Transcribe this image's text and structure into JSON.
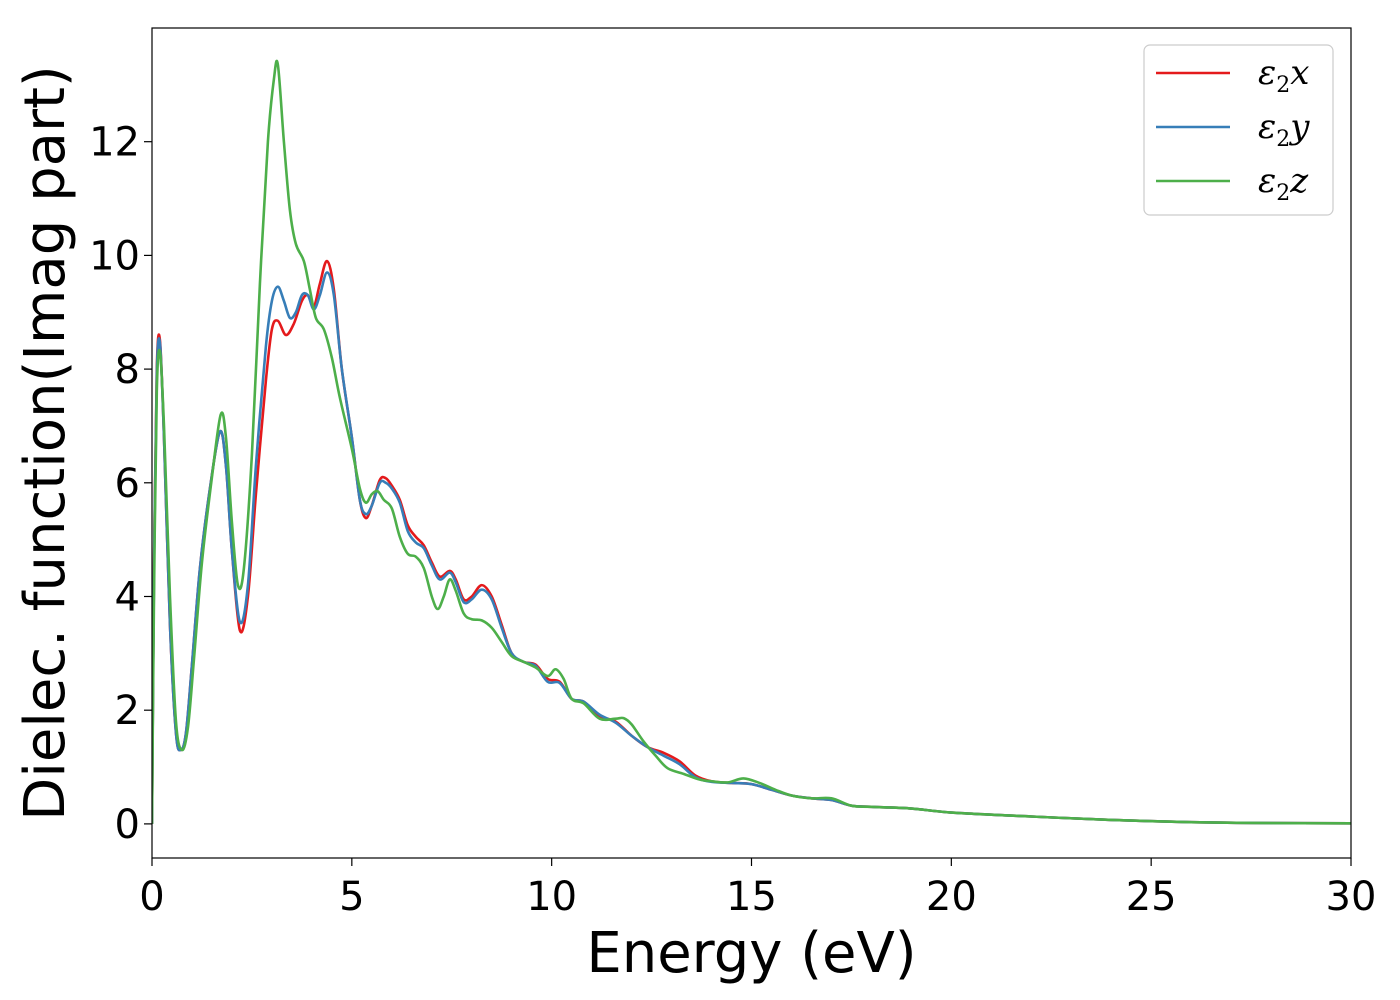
{
  "chart_data": {
    "type": "line",
    "xlabel": "Energy (eV)",
    "ylabel": "Dielec. function(Imag part)",
    "xlim": [
      0,
      30
    ],
    "ylim": [
      -0.6,
      14
    ],
    "xticks": [
      0,
      5,
      10,
      15,
      20,
      25,
      30
    ],
    "yticks": [
      0,
      2,
      4,
      6,
      8,
      10,
      12
    ],
    "grid": false,
    "legend_position": "top-right",
    "series": [
      {
        "name": "ε2x",
        "legend": {
          "base": "ε",
          "sub": "2",
          "suffix": "x"
        },
        "color": "#e41a1c",
        "points": [
          [
            0,
            0
          ],
          [
            0.05,
            4.5
          ],
          [
            0.12,
            8.0
          ],
          [
            0.2,
            8.5
          ],
          [
            0.3,
            6.8
          ],
          [
            0.45,
            3.5
          ],
          [
            0.6,
            1.6
          ],
          [
            0.72,
            1.3
          ],
          [
            0.85,
            1.6
          ],
          [
            1.0,
            2.8
          ],
          [
            1.2,
            4.5
          ],
          [
            1.45,
            5.9
          ],
          [
            1.7,
            6.9
          ],
          [
            1.85,
            6.3
          ],
          [
            2.0,
            4.8
          ],
          [
            2.2,
            3.4
          ],
          [
            2.4,
            4.0
          ],
          [
            2.6,
            5.8
          ],
          [
            2.85,
            7.8
          ],
          [
            3.0,
            8.7
          ],
          [
            3.15,
            8.85
          ],
          [
            3.35,
            8.6
          ],
          [
            3.55,
            8.8
          ],
          [
            3.75,
            9.2
          ],
          [
            3.9,
            9.3
          ],
          [
            4.05,
            9.1
          ],
          [
            4.2,
            9.5
          ],
          [
            4.38,
            9.9
          ],
          [
            4.55,
            9.4
          ],
          [
            4.75,
            8.0
          ],
          [
            5.0,
            6.8
          ],
          [
            5.2,
            5.7
          ],
          [
            5.35,
            5.38
          ],
          [
            5.5,
            5.6
          ],
          [
            5.7,
            6.05
          ],
          [
            5.85,
            6.08
          ],
          [
            6.0,
            5.95
          ],
          [
            6.2,
            5.7
          ],
          [
            6.4,
            5.25
          ],
          [
            6.6,
            5.05
          ],
          [
            6.8,
            4.9
          ],
          [
            7.0,
            4.6
          ],
          [
            7.2,
            4.35
          ],
          [
            7.45,
            4.45
          ],
          [
            7.6,
            4.3
          ],
          [
            7.8,
            3.95
          ],
          [
            8.0,
            4.0
          ],
          [
            8.25,
            4.2
          ],
          [
            8.5,
            4.0
          ],
          [
            8.75,
            3.5
          ],
          [
            9.0,
            3.0
          ],
          [
            9.3,
            2.85
          ],
          [
            9.6,
            2.8
          ],
          [
            9.9,
            2.55
          ],
          [
            10.2,
            2.5
          ],
          [
            10.5,
            2.2
          ],
          [
            10.8,
            2.15
          ],
          [
            11.2,
            1.9
          ],
          [
            11.6,
            1.8
          ],
          [
            12.0,
            1.55
          ],
          [
            12.4,
            1.35
          ],
          [
            12.8,
            1.25
          ],
          [
            13.2,
            1.1
          ],
          [
            13.6,
            0.85
          ],
          [
            14.0,
            0.75
          ],
          [
            14.5,
            0.72
          ],
          [
            15.0,
            0.7
          ],
          [
            15.5,
            0.6
          ],
          [
            16.0,
            0.5
          ],
          [
            16.5,
            0.45
          ],
          [
            17.0,
            0.42
          ],
          [
            17.5,
            0.32
          ],
          [
            18.0,
            0.3
          ],
          [
            19.0,
            0.27
          ],
          [
            20.0,
            0.2
          ],
          [
            22.0,
            0.13
          ],
          [
            24.0,
            0.07
          ],
          [
            26.0,
            0.03
          ],
          [
            28.0,
            0.015
          ],
          [
            30.0,
            0.01
          ]
        ]
      },
      {
        "name": "ε2y",
        "legend": {
          "base": "ε",
          "sub": "2",
          "suffix": "y"
        },
        "color": "#377eb8",
        "points": [
          [
            0,
            0
          ],
          [
            0.05,
            4.4
          ],
          [
            0.12,
            7.9
          ],
          [
            0.2,
            8.45
          ],
          [
            0.3,
            6.8
          ],
          [
            0.45,
            3.5
          ],
          [
            0.6,
            1.6
          ],
          [
            0.72,
            1.3
          ],
          [
            0.85,
            1.6
          ],
          [
            1.0,
            2.8
          ],
          [
            1.2,
            4.5
          ],
          [
            1.45,
            5.9
          ],
          [
            1.7,
            6.9
          ],
          [
            1.85,
            6.3
          ],
          [
            2.0,
            4.8
          ],
          [
            2.2,
            3.55
          ],
          [
            2.4,
            4.2
          ],
          [
            2.6,
            6.3
          ],
          [
            2.85,
            8.4
          ],
          [
            3.0,
            9.2
          ],
          [
            3.15,
            9.45
          ],
          [
            3.3,
            9.2
          ],
          [
            3.45,
            8.9
          ],
          [
            3.6,
            9.0
          ],
          [
            3.75,
            9.3
          ],
          [
            3.9,
            9.3
          ],
          [
            4.05,
            9.05
          ],
          [
            4.2,
            9.3
          ],
          [
            4.38,
            9.7
          ],
          [
            4.55,
            9.3
          ],
          [
            4.75,
            8.0
          ],
          [
            5.0,
            6.8
          ],
          [
            5.2,
            5.7
          ],
          [
            5.35,
            5.45
          ],
          [
            5.5,
            5.6
          ],
          [
            5.7,
            6.0
          ],
          [
            5.85,
            6.0
          ],
          [
            6.0,
            5.9
          ],
          [
            6.2,
            5.65
          ],
          [
            6.4,
            5.15
          ],
          [
            6.6,
            4.95
          ],
          [
            6.8,
            4.85
          ],
          [
            7.0,
            4.55
          ],
          [
            7.2,
            4.3
          ],
          [
            7.45,
            4.42
          ],
          [
            7.6,
            4.25
          ],
          [
            7.8,
            3.9
          ],
          [
            8.0,
            3.95
          ],
          [
            8.25,
            4.12
          ],
          [
            8.5,
            3.95
          ],
          [
            8.75,
            3.45
          ],
          [
            9.0,
            3.0
          ],
          [
            9.3,
            2.85
          ],
          [
            9.6,
            2.78
          ],
          [
            9.9,
            2.5
          ],
          [
            10.2,
            2.48
          ],
          [
            10.5,
            2.2
          ],
          [
            10.8,
            2.15
          ],
          [
            11.2,
            1.92
          ],
          [
            11.6,
            1.78
          ],
          [
            12.0,
            1.55
          ],
          [
            12.4,
            1.35
          ],
          [
            12.8,
            1.2
          ],
          [
            13.2,
            1.05
          ],
          [
            13.6,
            0.82
          ],
          [
            14.0,
            0.74
          ],
          [
            14.5,
            0.72
          ],
          [
            15.0,
            0.7
          ],
          [
            15.5,
            0.6
          ],
          [
            16.0,
            0.5
          ],
          [
            16.5,
            0.45
          ],
          [
            17.0,
            0.42
          ],
          [
            17.5,
            0.32
          ],
          [
            18.0,
            0.3
          ],
          [
            19.0,
            0.27
          ],
          [
            20.0,
            0.2
          ],
          [
            22.0,
            0.13
          ],
          [
            24.0,
            0.07
          ],
          [
            26.0,
            0.03
          ],
          [
            28.0,
            0.015
          ],
          [
            30.0,
            0.01
          ]
        ]
      },
      {
        "name": "ε2z",
        "legend": {
          "base": "ε",
          "sub": "2",
          "suffix": "z"
        },
        "color": "#4daf4a",
        "points": [
          [
            0,
            0
          ],
          [
            0.05,
            4.0
          ],
          [
            0.12,
            7.6
          ],
          [
            0.2,
            8.3
          ],
          [
            0.3,
            7.0
          ],
          [
            0.45,
            4.0
          ],
          [
            0.6,
            1.8
          ],
          [
            0.75,
            1.3
          ],
          [
            0.9,
            1.7
          ],
          [
            1.05,
            2.9
          ],
          [
            1.25,
            4.6
          ],
          [
            1.5,
            6.1
          ],
          [
            1.72,
            7.2
          ],
          [
            1.85,
            6.8
          ],
          [
            2.0,
            5.3
          ],
          [
            2.15,
            4.2
          ],
          [
            2.3,
            4.5
          ],
          [
            2.5,
            6.5
          ],
          [
            2.7,
            9.5
          ],
          [
            2.9,
            12.0
          ],
          [
            3.05,
            13.1
          ],
          [
            3.15,
            13.35
          ],
          [
            3.3,
            12.0
          ],
          [
            3.45,
            10.8
          ],
          [
            3.6,
            10.2
          ],
          [
            3.8,
            9.9
          ],
          [
            3.95,
            9.4
          ],
          [
            4.1,
            8.9
          ],
          [
            4.3,
            8.7
          ],
          [
            4.5,
            8.2
          ],
          [
            4.7,
            7.5
          ],
          [
            5.0,
            6.6
          ],
          [
            5.2,
            5.9
          ],
          [
            5.35,
            5.65
          ],
          [
            5.5,
            5.8
          ],
          [
            5.65,
            5.85
          ],
          [
            5.8,
            5.7
          ],
          [
            6.0,
            5.55
          ],
          [
            6.2,
            5.05
          ],
          [
            6.4,
            4.75
          ],
          [
            6.6,
            4.7
          ],
          [
            6.8,
            4.5
          ],
          [
            7.0,
            4.0
          ],
          [
            7.15,
            3.78
          ],
          [
            7.3,
            4.0
          ],
          [
            7.45,
            4.3
          ],
          [
            7.6,
            4.1
          ],
          [
            7.8,
            3.7
          ],
          [
            8.0,
            3.6
          ],
          [
            8.25,
            3.58
          ],
          [
            8.5,
            3.45
          ],
          [
            8.75,
            3.2
          ],
          [
            9.0,
            2.95
          ],
          [
            9.3,
            2.85
          ],
          [
            9.6,
            2.75
          ],
          [
            9.9,
            2.6
          ],
          [
            10.1,
            2.72
          ],
          [
            10.3,
            2.55
          ],
          [
            10.5,
            2.2
          ],
          [
            10.8,
            2.12
          ],
          [
            11.2,
            1.85
          ],
          [
            11.6,
            1.85
          ],
          [
            11.8,
            1.86
          ],
          [
            12.0,
            1.75
          ],
          [
            12.3,
            1.45
          ],
          [
            12.6,
            1.2
          ],
          [
            12.9,
            0.98
          ],
          [
            13.3,
            0.88
          ],
          [
            13.7,
            0.78
          ],
          [
            14.0,
            0.75
          ],
          [
            14.4,
            0.73
          ],
          [
            14.8,
            0.8
          ],
          [
            15.2,
            0.72
          ],
          [
            15.6,
            0.6
          ],
          [
            16.0,
            0.5
          ],
          [
            16.5,
            0.45
          ],
          [
            17.0,
            0.45
          ],
          [
            17.5,
            0.32
          ],
          [
            18.0,
            0.3
          ],
          [
            19.0,
            0.27
          ],
          [
            20.0,
            0.2
          ],
          [
            22.0,
            0.13
          ],
          [
            24.0,
            0.07
          ],
          [
            26.0,
            0.03
          ],
          [
            28.0,
            0.015
          ],
          [
            30.0,
            0.01
          ]
        ]
      }
    ]
  }
}
